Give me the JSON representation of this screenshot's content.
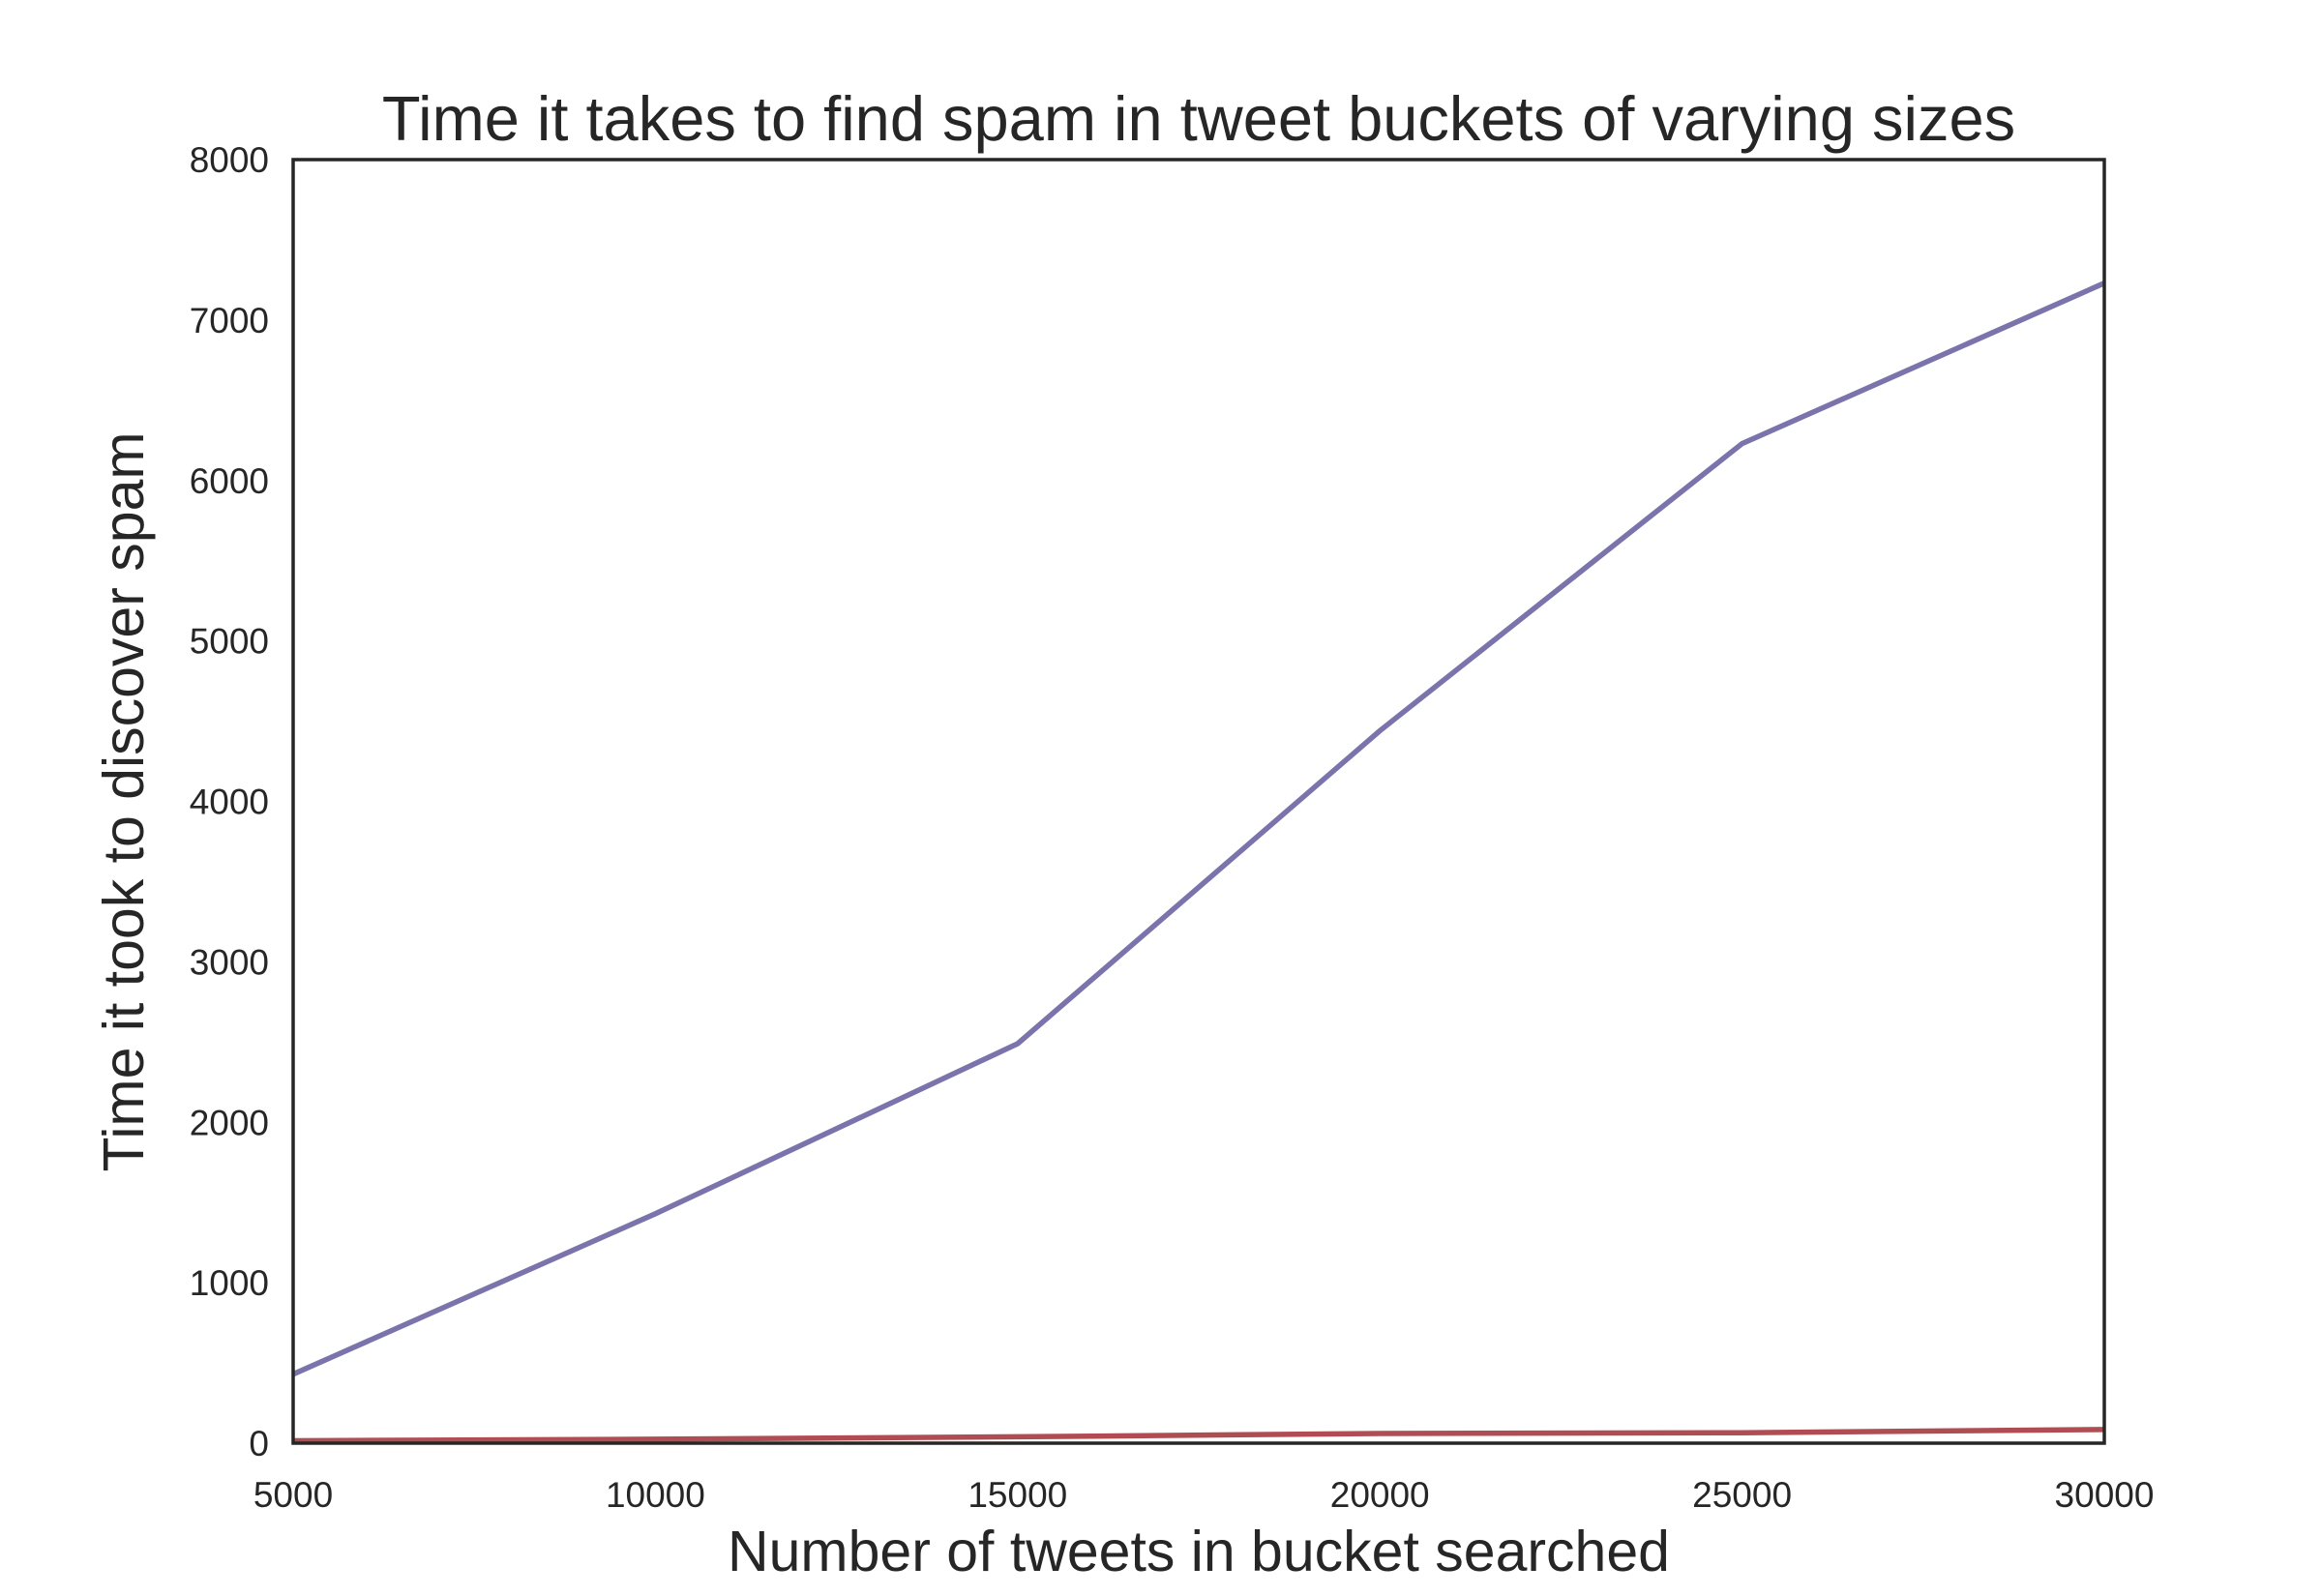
{
  "chart_data": {
    "type": "line",
    "title": "Time it takes to find spam in tweet buckets of varying sizes",
    "xlabel": "Number of tweets in bucket searched",
    "ylabel": "Time it took to discover spam",
    "x": [
      5000,
      10000,
      15000,
      20000,
      25000,
      30000
    ],
    "xlim": [
      5000,
      30000
    ],
    "ylim": [
      0,
      8000
    ],
    "xticks": [
      "5000",
      "10000",
      "15000",
      "20000",
      "25000",
      "30000"
    ],
    "yticks": [
      "0",
      "1000",
      "2000",
      "3000",
      "4000",
      "5000",
      "6000",
      "7000",
      "8000"
    ],
    "grid": false,
    "series": [
      {
        "color": "#7a73ac",
        "values": [
          430,
          1430,
          2490,
          4440,
          6230,
          7230
        ]
      },
      {
        "color": "#b04d53",
        "values": [
          15,
          25,
          40,
          60,
          65,
          85
        ]
      }
    ]
  }
}
